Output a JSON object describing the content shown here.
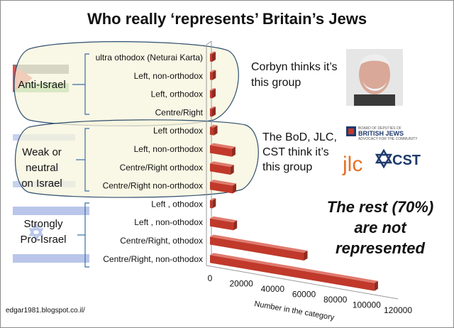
{
  "title": "Who really ‘represents’ Britain’s Jews",
  "chart_data": {
    "type": "bar",
    "orientation": "horizontal",
    "three_d": true,
    "categories": [
      "ultra othodox (Neturai Karta)",
      "Left, non-orthodox",
      "Left, orthodox",
      "Centre/Right",
      "Left orthodox",
      "Left, non-orthodox",
      "Centre/Right orthodox",
      "Centre/Right non-orthodox",
      "Left , othodox",
      "Left , non-othodox",
      "Centre/Right, othodox",
      "Centre/Right, non-othodox"
    ],
    "values": [
      500,
      1500,
      1000,
      1200,
      2500,
      14000,
      13000,
      14500,
      1500,
      15000,
      60000,
      105000
    ],
    "bar_color": "#c0392b",
    "xlim": [
      0,
      120000
    ],
    "xticks": [
      "0",
      "20000",
      "40000",
      "60000",
      "80000",
      "100000",
      "120000"
    ],
    "xlabel": "Number in the category",
    "grid": false
  },
  "groups": [
    {
      "label": "Anti-Israel",
      "lines": [
        "Anti-Israel"
      ]
    },
    {
      "label": "Weak or neutral on Israel",
      "lines": [
        "Weak or",
        "neutral",
        "on Israel"
      ]
    },
    {
      "label": "Strongly Pro-Israel",
      "lines": [
        "Strongly",
        "Pro-Israel"
      ]
    }
  ],
  "annotations": {
    "corbyn": [
      "Corbyn thinks it’s",
      "this group"
    ],
    "bod": [
      "The BoD, JLC,",
      "CST  think  it’s",
      "this group"
    ],
    "rest": [
      "The rest (70%)",
      "are not",
      "represented"
    ]
  },
  "logos": {
    "bod_line1": "BOARD OF DEPUTIES OF",
    "bod_line2": "BRITISH JEWS",
    "bod_line3": "ADVOCACY FOR THE COMMUNITY",
    "jlc": "jlc",
    "cst": "CST"
  },
  "credit": "edgar1981.blogspot.co.il/",
  "colors": {
    "bar": "#c0392b",
    "bubble": "#f7f4dc",
    "israel_blue": "#b9c6ea",
    "palestine_red": "#d9534f",
    "palestine_green": "#5cb85c"
  }
}
